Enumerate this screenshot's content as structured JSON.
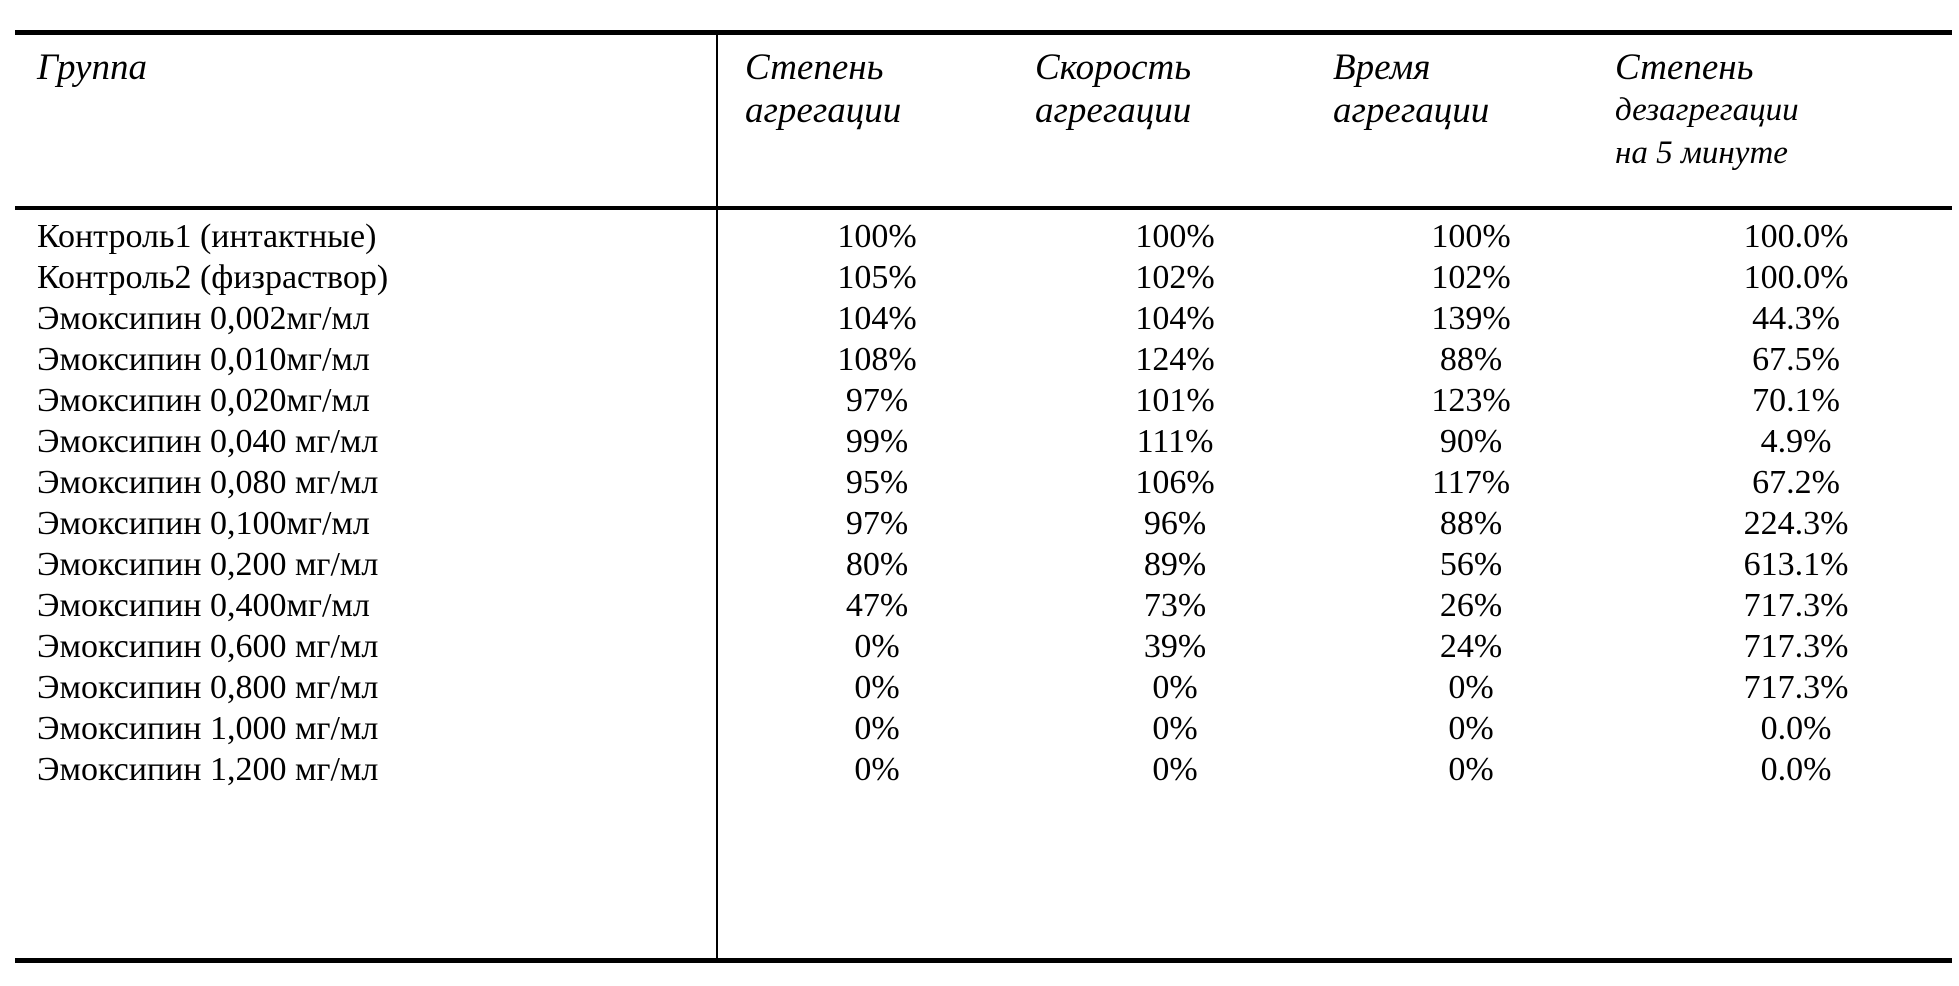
{
  "table": {
    "headers": [
      [
        "Группа"
      ],
      [
        "Степень",
        "агрегации"
      ],
      [
        "Скорость",
        "агрегации"
      ],
      [
        "Время",
        "агрегации"
      ],
      [
        "Степень",
        "дезагрегации",
        "на 5 минуте"
      ]
    ],
    "rows": [
      [
        "Контроль1 (интактные)",
        "100%",
        "100%",
        "100%",
        "100.0%"
      ],
      [
        "Контроль2 (физраствор)",
        "105%",
        "102%",
        "102%",
        "100.0%"
      ],
      [
        "Эмоксипин 0,002мг/мл",
        "104%",
        "104%",
        "139%",
        "44.3%"
      ],
      [
        "Эмоксипин 0,010мг/мл",
        "108%",
        "124%",
        "88%",
        "67.5%"
      ],
      [
        "Эмоксипин 0,020мг/мл",
        "97%",
        "101%",
        "123%",
        "70.1%"
      ],
      [
        "Эмоксипин 0,040 мг/мл",
        "99%",
        "111%",
        "90%",
        "4.9%"
      ],
      [
        "Эмоксипин 0,080 мг/мл",
        "95%",
        "106%",
        "117%",
        "67.2%"
      ],
      [
        "Эмоксипин 0,100мг/мл",
        "97%",
        "96%",
        "88%",
        "224.3%"
      ],
      [
        "Эмоксипин 0,200 мг/мл",
        "80%",
        "89%",
        "56%",
        "613.1%"
      ],
      [
        "Эмоксипин 0,400мг/мл",
        "47%",
        "73%",
        "26%",
        "717.3%"
      ],
      [
        "Эмоксипин 0,600 мг/мл",
        "0%",
        "39%",
        "24%",
        "717.3%"
      ],
      [
        "Эмоксипин 0,800 мг/мл",
        "0%",
        "0%",
        "0%",
        "717.3%"
      ],
      [
        "Эмоксипин 1,000 мг/мл",
        "0%",
        "0%",
        "0%",
        "0.0%"
      ],
      [
        "Эмоксипин 1,200 мг/мл",
        "0%",
        "0%",
        "0%",
        "0.0%"
      ]
    ]
  }
}
